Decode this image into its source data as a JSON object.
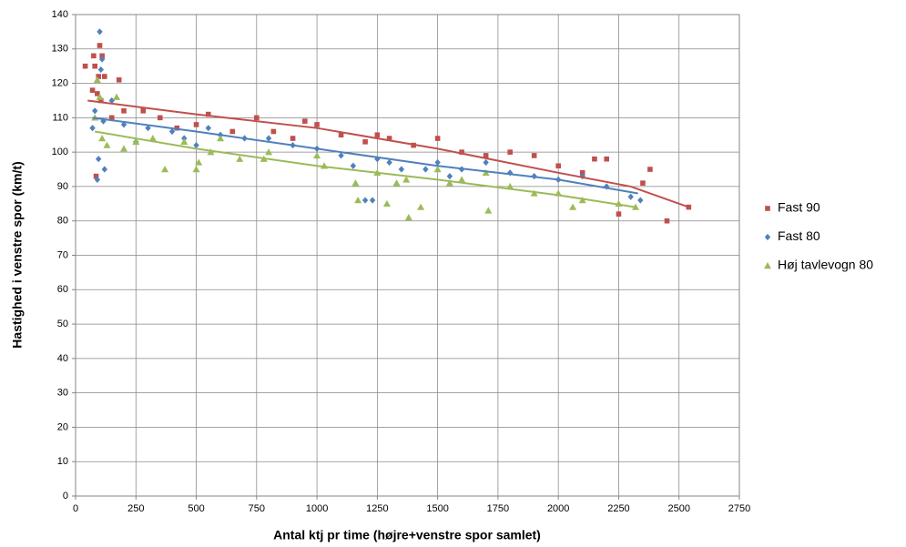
{
  "chart_data": {
    "type": "scatter",
    "xlabel": "Antal ktj pr time (højre+venstre spor samlet)",
    "ylabel": "Hastighed i venstre spor (km/t)",
    "xlim": [
      0,
      2750
    ],
    "xticks": [
      0,
      250,
      500,
      750,
      1000,
      1250,
      1500,
      1750,
      2000,
      2250,
      2500,
      2750
    ],
    "ylim": [
      0,
      140
    ],
    "yticks": [
      0,
      10,
      20,
      30,
      40,
      50,
      60,
      70,
      80,
      90,
      100,
      110,
      120,
      130,
      140
    ],
    "grid": true,
    "legend": "right",
    "series": [
      {
        "name": "Fast 90",
        "color": "#c0504d",
        "marker": "square",
        "x": [
          40,
          70,
          75,
          80,
          85,
          90,
          95,
          100,
          105,
          110,
          120,
          150,
          180,
          200,
          280,
          350,
          420,
          500,
          550,
          650,
          750,
          820,
          900,
          950,
          1000,
          1100,
          1200,
          1250,
          1300,
          1400,
          1500,
          1600,
          1700,
          1800,
          1900,
          2000,
          2100,
          2150,
          2200,
          2250,
          2350,
          2380,
          2450,
          2540
        ],
        "values": [
          125,
          118,
          128,
          125,
          93,
          117,
          122,
          131,
          115,
          128,
          122,
          110,
          121,
          112,
          112,
          110,
          107,
          108,
          111,
          106,
          110,
          106,
          104,
          109,
          108,
          105,
          103,
          105,
          104,
          102,
          104,
          100,
          99,
          100,
          99,
          96,
          94,
          98,
          98,
          82,
          91,
          95,
          80,
          84
        ],
        "trend": {
          "x": [
            50,
            500,
            1000,
            1500,
            2000,
            2300,
            2540
          ],
          "y": [
            115,
            111,
            107,
            101,
            94,
            90,
            84
          ]
        }
      },
      {
        "name": "Fast 80",
        "color": "#4f81bd",
        "marker": "diamond",
        "x": [
          70,
          80,
          90,
          95,
          100,
          105,
          110,
          115,
          120,
          150,
          200,
          250,
          300,
          400,
          450,
          500,
          550,
          600,
          700,
          800,
          900,
          1000,
          1100,
          1150,
          1200,
          1230,
          1250,
          1300,
          1350,
          1450,
          1500,
          1550,
          1600,
          1700,
          1800,
          1900,
          2000,
          2100,
          2200,
          2300,
          2340
        ],
        "values": [
          107,
          112,
          92,
          98,
          135,
          124,
          127,
          109,
          95,
          115,
          108,
          103,
          107,
          106,
          104,
          102,
          107,
          105,
          104,
          104,
          102,
          101,
          99,
          96,
          86,
          86,
          98,
          97,
          95,
          95,
          97,
          93,
          95,
          97,
          94,
          93,
          92,
          93,
          90,
          87,
          86
        ],
        "trend": {
          "x": [
            70,
            500,
            1000,
            1500,
            2000,
            2330
          ],
          "y": [
            110,
            106,
            101,
            96,
            92,
            88
          ]
        }
      },
      {
        "name": "Høj tavlevogn 80",
        "color": "#9bbb59",
        "marker": "triangle",
        "x": [
          80,
          90,
          100,
          110,
          130,
          170,
          200,
          250,
          320,
          370,
          450,
          500,
          510,
          560,
          600,
          680,
          780,
          800,
          1000,
          1030,
          1160,
          1170,
          1250,
          1290,
          1330,
          1370,
          1380,
          1430,
          1500,
          1550,
          1600,
          1700,
          1710,
          1800,
          1900,
          2000,
          2060,
          2100,
          2250,
          2320
        ],
        "values": [
          110,
          121,
          116,
          104,
          102,
          116,
          101,
          103,
          104,
          95,
          103,
          95,
          97,
          100,
          104,
          98,
          98,
          100,
          99,
          96,
          91,
          86,
          94,
          85,
          91,
          92,
          81,
          84,
          95,
          91,
          92,
          94,
          83,
          90,
          88,
          88,
          84,
          86,
          85,
          84
        ],
        "trend": {
          "x": [
            80,
            500,
            1000,
            1500,
            2000,
            2320
          ],
          "y": [
            106,
            101,
            96,
            92,
            87.5,
            84
          ]
        }
      }
    ]
  }
}
